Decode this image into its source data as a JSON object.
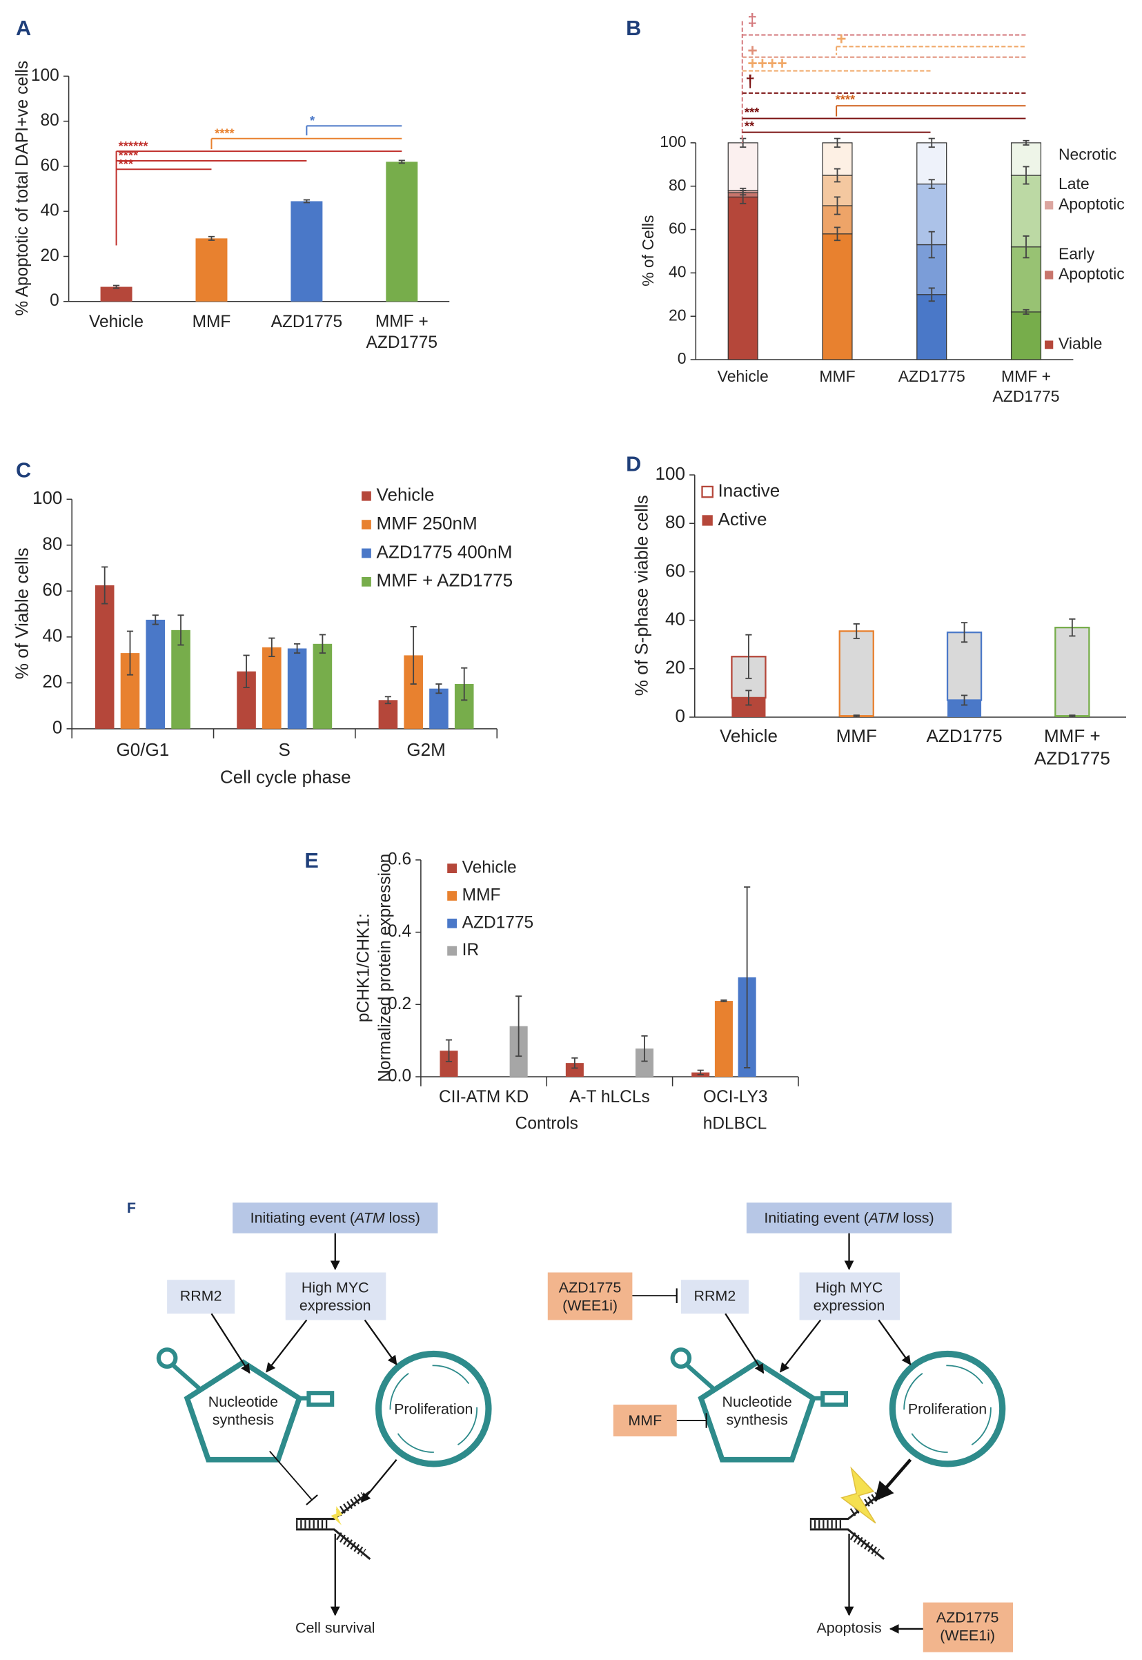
{
  "chart_data": [
    {
      "panel": "A",
      "type": "bar",
      "ylabel": "% Apoptotic of total DAPI+ve cells",
      "categories": [
        "Vehicle",
        "MMF",
        "AZD1775",
        "MMF + AZD1775"
      ],
      "values": [
        6.5,
        28,
        44.5,
        62
      ],
      "errors": [
        0.6,
        0.8,
        0.6,
        0.6
      ],
      "colors": [
        "#b5473a",
        "#e8812f",
        "#4a78c8",
        "#77ad4b"
      ],
      "ylim": [
        0,
        100
      ],
      "yticks": [
        0,
        20,
        40,
        60,
        80,
        100
      ],
      "annotations": [
        {
          "text": "******",
          "color": "#c0302c"
        },
        {
          "text": "****",
          "color": "#c0302c"
        },
        {
          "text": "***",
          "color": "#c0302c"
        },
        {
          "text": "****",
          "color": "#e8812f"
        },
        {
          "text": "*",
          "color": "#4a78c8"
        }
      ]
    },
    {
      "panel": "B",
      "type": "stacked",
      "ylabel": "% of Cells",
      "categories": [
        "Vehicle",
        "MMF",
        "AZD1775",
        "MMF + AZD1775"
      ],
      "series": [
        {
          "name": "Viable",
          "colors": [
            "#b5473a",
            "#e8812f",
            "#4a78c8",
            "#77ad4b"
          ],
          "values": [
            75,
            58,
            30,
            22
          ],
          "errors": [
            3,
            3,
            3,
            1
          ]
        },
        {
          "name": "Early Apoptotic",
          "colors": [
            "#c8756c",
            "#eea468",
            "#7b9dd8",
            "#98c273"
          ],
          "values": [
            2,
            13,
            23,
            30
          ],
          "errors": [
            1,
            4,
            6,
            5
          ]
        },
        {
          "name": "Late Apoptotic",
          "colors": [
            "#dba59f",
            "#f4c8a0",
            "#acc2e8",
            "#bcd9a4"
          ],
          "values": [
            1,
            14,
            28,
            33
          ],
          "errors": [
            1,
            3,
            2,
            4
          ]
        },
        {
          "name": "Necrotic",
          "colors": [
            "#fbf0ef",
            "#fdf0e4",
            "#eef2fa",
            "#eef5e8"
          ],
          "values": [
            22,
            15,
            19,
            15
          ],
          "errors": [
            2,
            2,
            2,
            1
          ]
        }
      ],
      "ylim": [
        0,
        100
      ],
      "yticks": [
        0,
        20,
        40,
        60,
        80,
        100
      ],
      "annotations": [
        {
          "text": "‡",
          "color": "#d4797d"
        },
        {
          "text": "+",
          "color": "#f0a868"
        },
        {
          "text": "+",
          "color": "#e0907a"
        },
        {
          "text": "++++",
          "color": "#f0a868"
        },
        {
          "text": "†",
          "color": "#7a1010"
        },
        {
          "text": "****",
          "color": "#d0601c"
        },
        {
          "text": "***",
          "color": "#7a1010"
        },
        {
          "text": "**",
          "color": "#7a1010"
        }
      ]
    },
    {
      "panel": "C",
      "type": "grouped",
      "ylabel": "% of Viable cells",
      "xlabel": "Cell cycle phase",
      "categories": [
        "G0/G1",
        "S",
        "G2M"
      ],
      "series": [
        {
          "name": "Vehicle",
          "color": "#b5473a",
          "values": [
            62.5,
            25,
            12.5
          ],
          "errors": [
            8,
            7,
            1.5
          ]
        },
        {
          "name": "MMF 250nM",
          "color": "#e8812f",
          "values": [
            33,
            35.5,
            32
          ],
          "errors": [
            9.5,
            4,
            12.5
          ]
        },
        {
          "name": "AZD1775 400nM",
          "color": "#4a78c8",
          "values": [
            47.5,
            35,
            17.5
          ],
          "errors": [
            2,
            2,
            2
          ]
        },
        {
          "name": "MMF + AZD1775",
          "color": "#77ad4b",
          "values": [
            43,
            37,
            19.5
          ],
          "errors": [
            6.5,
            4,
            7
          ]
        }
      ],
      "ylim": [
        0,
        100
      ],
      "yticks": [
        0,
        20,
        40,
        60,
        80,
        100
      ]
    },
    {
      "panel": "D",
      "type": "stacked",
      "ylabel": "% of S-phase viable cells",
      "categories": [
        "Vehicle",
        "MMF",
        "AZD1775",
        "MMF + AZD1775"
      ],
      "series": [
        {
          "name": "Active",
          "colors": [
            "#b5473a",
            "#e8812f",
            "#4a78c8",
            "#77ad4b"
          ],
          "values": [
            8,
            0.5,
            7,
            0.5
          ],
          "errors": [
            3,
            0.3,
            2,
            0.3
          ]
        },
        {
          "name": "Inactive",
          "colors": [
            "#d9d9d9",
            "#d9d9d9",
            "#d9d9d9",
            "#d9d9d9"
          ],
          "outlines": [
            "#b5473a",
            "#e8812f",
            "#4a78c8",
            "#77ad4b"
          ],
          "values": [
            17,
            35,
            28,
            36.5
          ],
          "errors": [
            9,
            3,
            4,
            3.5
          ]
        }
      ],
      "ylim": [
        0,
        100
      ],
      "yticks": [
        0,
        20,
        40,
        60,
        80,
        100
      ]
    },
    {
      "panel": "E",
      "type": "grouped",
      "ylabel": "pCHK1/CHK1: Normalized protein expression",
      "categories": [
        "CII-ATM KD",
        "A-T hLCLs",
        "OCI-LY3"
      ],
      "group_labels": [
        "Controls",
        "hDLBCL"
      ],
      "series": [
        {
          "name": "Vehicle",
          "color": "#b5473a",
          "values": [
            0.072,
            0.038,
            0.012
          ],
          "errors": [
            0.03,
            0.014,
            0.006
          ]
        },
        {
          "name": "MMF",
          "color": "#e8812f",
          "values": [
            null,
            null,
            0.21
          ],
          "errors": [
            null,
            null,
            0.002
          ]
        },
        {
          "name": "AZD1775",
          "color": "#4a78c8",
          "values": [
            null,
            null,
            0.275
          ],
          "errors": [
            null,
            null,
            0.25
          ]
        },
        {
          "name": "IR",
          "color": "#a6a6a6",
          "values": [
            0.14,
            0.078,
            null
          ],
          "errors": [
            0.083,
            0.035,
            null
          ]
        }
      ],
      "ylim": [
        0,
        0.6
      ],
      "yticks": [
        {
          "value": 0,
          "label": "0.0"
        },
        0.2,
        0.4,
        0.6
      ]
    }
  ],
  "diagram": {
    "panel": "F",
    "left": {
      "event": [
        "Initiating event (",
        "ATM",
        " loss)"
      ],
      "rrm2": "RRM2",
      "myc": "High MYC expression",
      "nucleotide": "Nucleotide synthesis",
      "proliferation": "Proliferation",
      "outcome": "Cell survival"
    },
    "right": {
      "event": [
        "Initiating event (",
        "ATM",
        " loss)"
      ],
      "rrm2": "RRM2",
      "myc": "High MYC expression",
      "nucleotide": "Nucleotide synthesis",
      "proliferation": "Proliferation",
      "outcome": "Apoptosis",
      "wee1_rrm2": "AZD1775 (WEE1i)",
      "mmf": "MMF",
      "wee1_apoptosis": "AZD1775 (WEE1i)"
    }
  }
}
